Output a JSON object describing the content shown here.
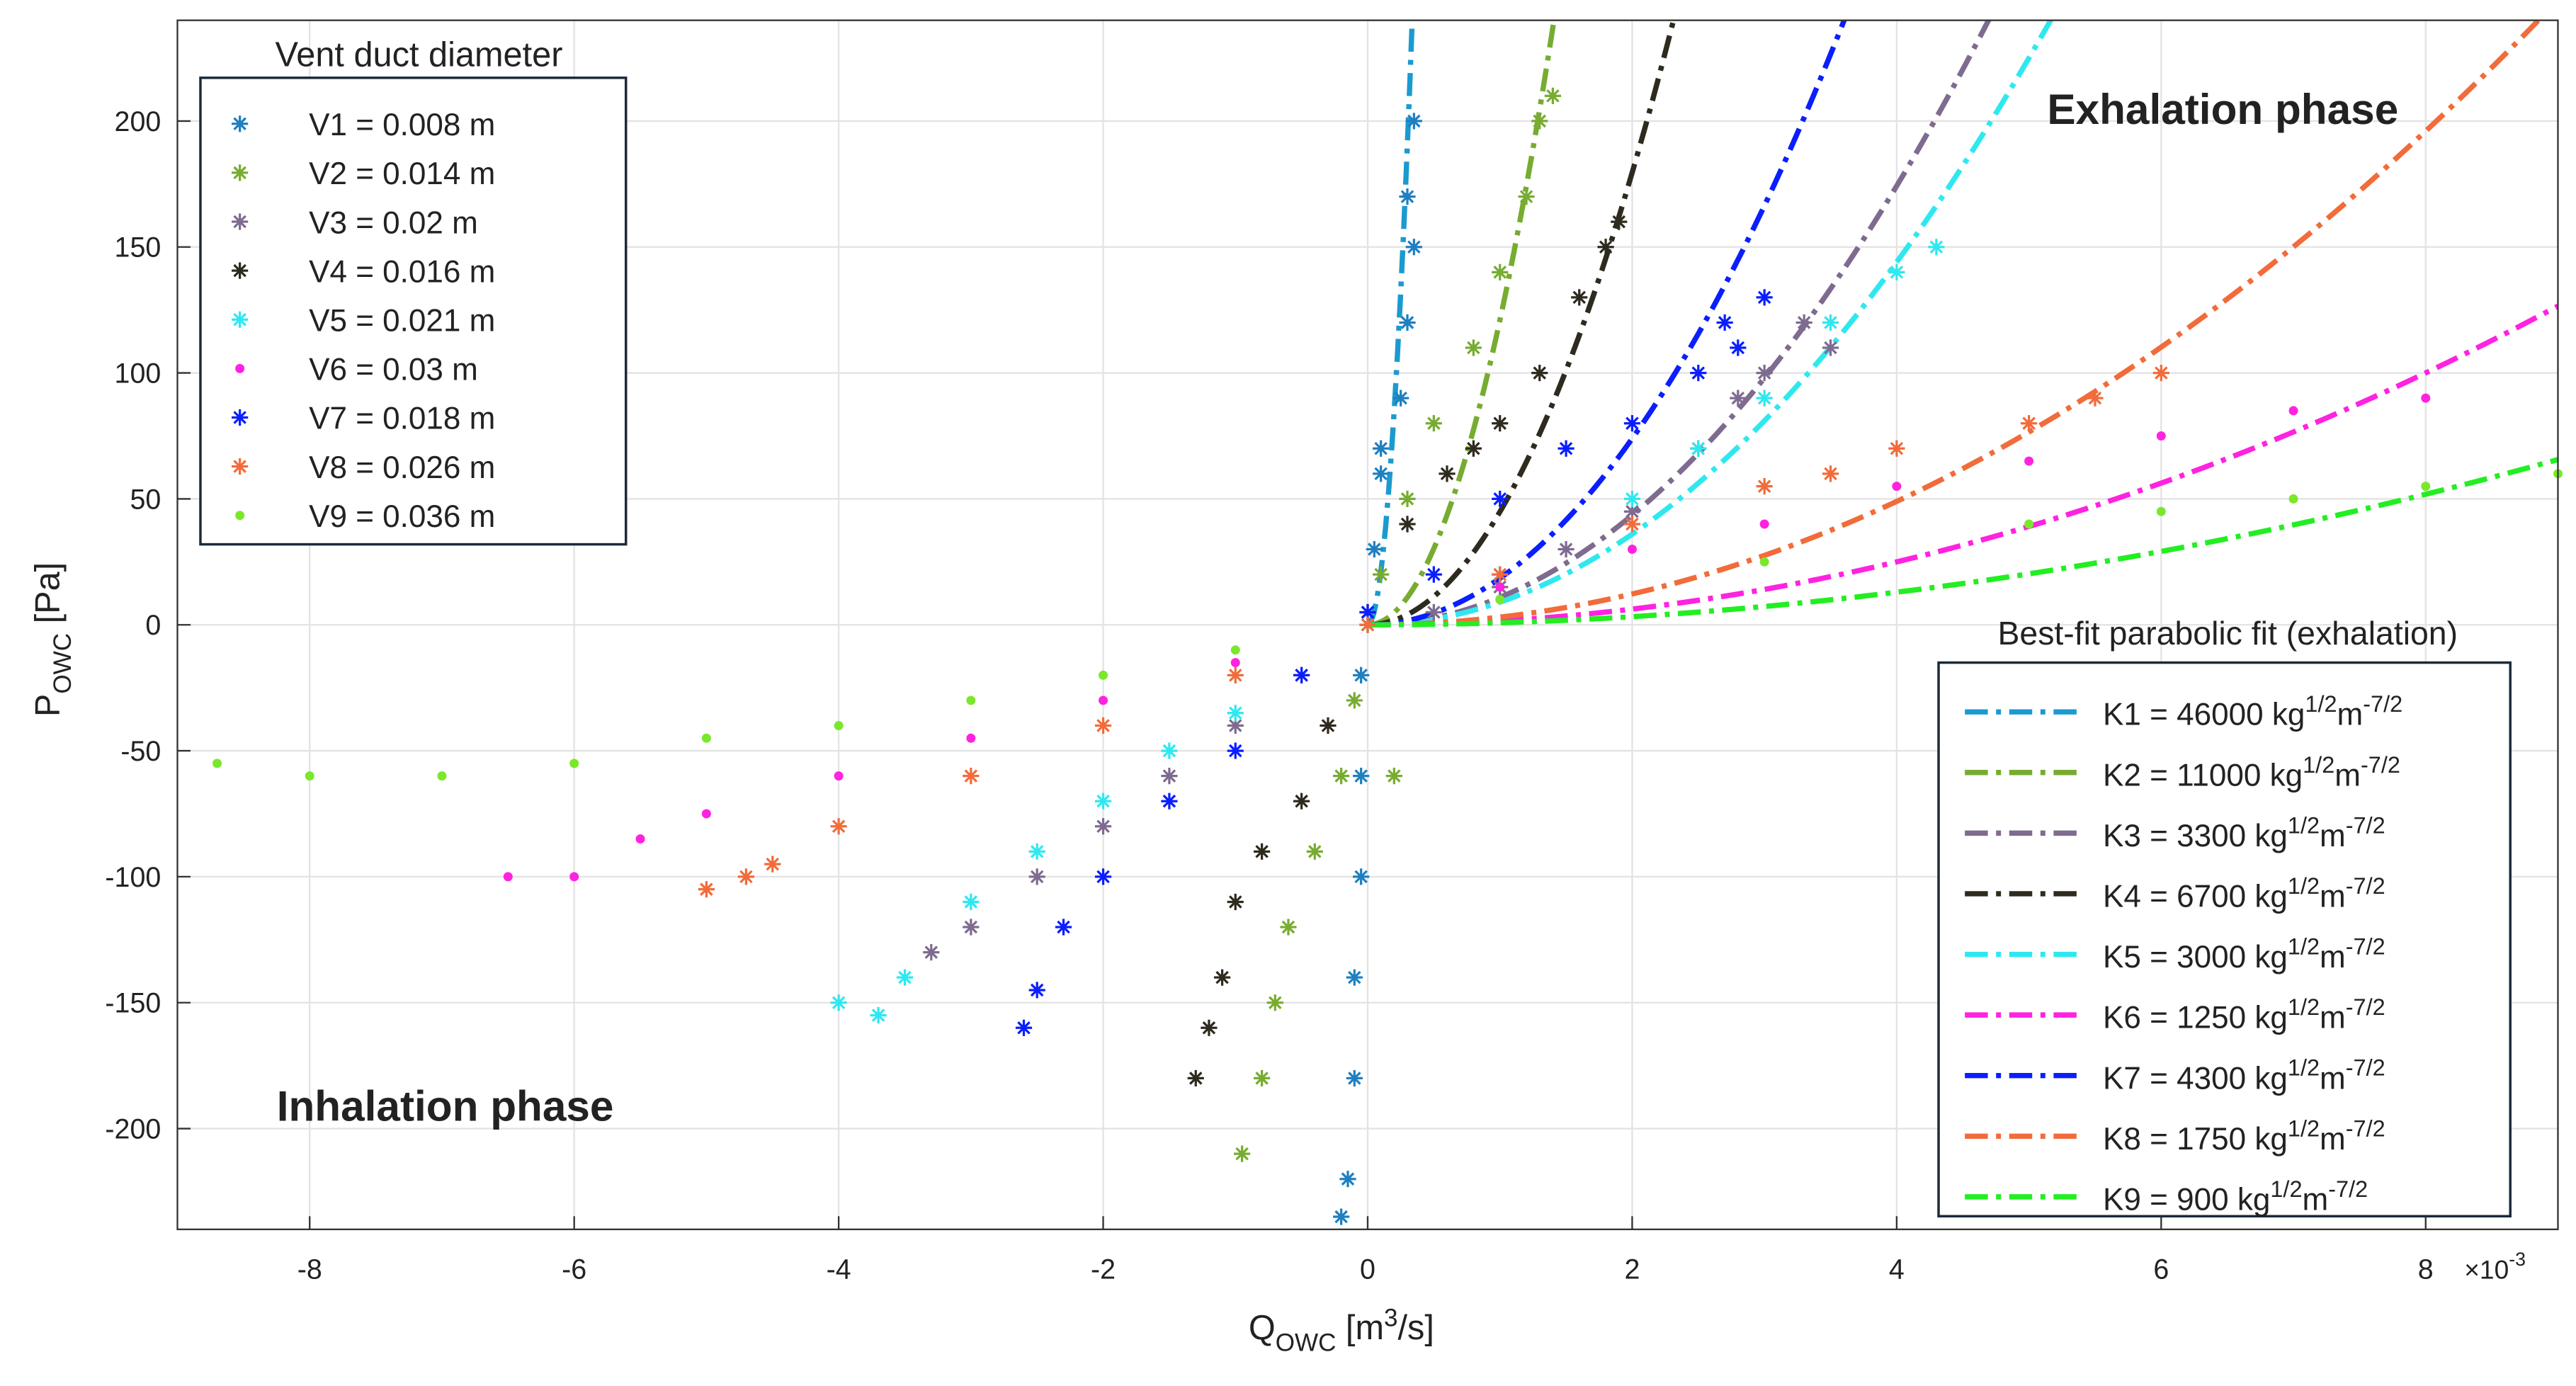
{
  "chart_data": {
    "type": "scatter",
    "xlabel": [
      "Q",
      "OWC",
      " [m",
      "3",
      "/s]"
    ],
    "ylabel": [
      "P",
      "OWC",
      " [Pa]"
    ],
    "x_exponent": [
      "×10",
      "-3"
    ],
    "xlim": [
      -9,
      9
    ],
    "ylim": [
      -240,
      240
    ],
    "xticks": [
      -8,
      -6,
      -4,
      -2,
      0,
      2,
      4,
      6,
      8
    ],
    "yticks": [
      -200,
      -150,
      -100,
      -50,
      0,
      50,
      100,
      150,
      200
    ],
    "grid": true,
    "annotations": [
      "Exhalation phase",
      "Inhalation phase"
    ],
    "legend_title": "Vent duct diameter",
    "legend_position": "upper left",
    "series": [
      {
        "name": "V1 = 0.008 m",
        "color": "#1f7fc0",
        "marker": "asterisk",
        "x": [
          0.35,
          0.3,
          0.3,
          0.25,
          0.1,
          0.05,
          0,
          -0.05,
          -0.05,
          -0.05,
          -0.1,
          -0.1,
          -0.15,
          -0.2,
          0.35,
          0.1
        ],
        "y": [
          200,
          170,
          120,
          90,
          60,
          30,
          0,
          -20,
          -60,
          -100,
          -140,
          -180,
          -220,
          -235,
          150,
          70
        ]
      },
      {
        "name": "V2 = 0.014 m",
        "color": "#77ac30",
        "marker": "asterisk",
        "x": [
          1.3,
          1.2,
          1,
          0.8,
          0.5,
          0.3,
          0.1,
          -0.1,
          -0.2,
          -0.4,
          -0.6,
          -0.7,
          -0.8,
          -0.95,
          1.4,
          0.2
        ],
        "y": [
          200,
          170,
          140,
          110,
          80,
          50,
          20,
          -30,
          -60,
          -90,
          -120,
          -150,
          -180,
          -210,
          210,
          -60
        ]
      },
      {
        "name": "V3 = 0.02 m",
        "color": "#7e6b8f",
        "marker": "asterisk",
        "x": [
          3.3,
          3,
          2.8,
          2.5,
          2,
          1.5,
          1,
          0.5,
          -0.5,
          -1,
          -1.5,
          -2,
          -2.5,
          -3,
          -3.3,
          3.5
        ],
        "y": [
          120,
          100,
          90,
          70,
          45,
          30,
          15,
          5,
          -20,
          -40,
          -60,
          -80,
          -100,
          -120,
          -130,
          110
        ]
      },
      {
        "name": "V4 = 0.016 m",
        "color": "#2e2a1e",
        "marker": "asterisk",
        "x": [
          1.9,
          1.6,
          1.3,
          1,
          0.6,
          0.3,
          0,
          -0.3,
          -0.5,
          -0.8,
          -1,
          -1.1,
          -1.2,
          -1.3,
          1.8,
          0.8
        ],
        "y": [
          160,
          130,
          100,
          80,
          60,
          40,
          5,
          -40,
          -70,
          -90,
          -110,
          -140,
          -160,
          -180,
          150,
          70
        ]
      },
      {
        "name": "V5 = 0.021 m",
        "color": "#2ee8f0",
        "marker": "asterisk",
        "x": [
          4.3,
          4,
          3.5,
          3,
          2.5,
          2,
          1,
          0,
          -1,
          -1.5,
          -2,
          -2.5,
          -3,
          -3.5,
          -3.7,
          -4
        ],
        "y": [
          150,
          140,
          120,
          90,
          70,
          50,
          20,
          0,
          -35,
          -50,
          -70,
          -90,
          -110,
          -140,
          -155,
          -150
        ]
      },
      {
        "name": "V6 = 0.03 m",
        "color": "#ff22e0",
        "marker": "dot",
        "x": [
          8,
          7,
          6,
          5,
          4,
          3,
          2,
          1,
          -1,
          -2,
          -3,
          -4,
          -5,
          -5.5,
          -6,
          -6.5
        ],
        "y": [
          90,
          85,
          75,
          65,
          55,
          40,
          30,
          15,
          -15,
          -30,
          -45,
          -60,
          -75,
          -85,
          -100,
          -100
        ]
      },
      {
        "name": "V7 = 0.018 m",
        "color": "#0a1eff",
        "marker": "asterisk",
        "x": [
          3,
          2.7,
          2.5,
          2,
          1.5,
          1,
          0.5,
          0,
          -0.5,
          -1,
          -1.5,
          -2,
          -2.3,
          -2.5,
          -2.6,
          2.8
        ],
        "y": [
          130,
          120,
          100,
          80,
          70,
          50,
          20,
          5,
          -20,
          -50,
          -70,
          -100,
          -120,
          -145,
          -160,
          110
        ]
      },
      {
        "name": "V8 = 0.026 m",
        "color": "#f26b3a",
        "marker": "asterisk",
        "x": [
          6,
          5.5,
          5,
          4,
          3,
          2,
          1,
          0,
          -1,
          -2,
          -3,
          -4,
          -4.5,
          -5,
          -4.7,
          3.5
        ],
        "y": [
          100,
          90,
          80,
          70,
          55,
          40,
          20,
          0,
          -20,
          -40,
          -60,
          -80,
          -95,
          -105,
          -100,
          60
        ]
      },
      {
        "name": "V9 = 0.036 m",
        "color": "#7ae82a",
        "marker": "dot",
        "x": [
          9,
          8,
          7,
          6,
          5,
          3,
          1,
          -1,
          -2,
          -3,
          -4,
          -5,
          -6,
          -7,
          -8,
          -8.7
        ],
        "y": [
          60,
          55,
          50,
          45,
          40,
          25,
          10,
          -10,
          -20,
          -30,
          -40,
          -45,
          -55,
          -60,
          -60,
          -55
        ]
      }
    ],
    "fit_title": "Best-fit parabolic fit (exhalation)",
    "fit_unit": [
      "1/2",
      "m",
      "-7/2"
    ],
    "fits": [
      {
        "name": "K1 = 46000 kg",
        "k": 46000,
        "color": "#1b9ad0"
      },
      {
        "name": "K2 = 11000 kg",
        "k": 11000,
        "color": "#77ac30"
      },
      {
        "name": "K3 = 3300 kg",
        "k": 3300,
        "color": "#7e6b8f"
      },
      {
        "name": "K4 = 6700 kg",
        "k": 6700,
        "color": "#2e2a1e"
      },
      {
        "name": "K5 = 3000 kg",
        "k": 3000,
        "color": "#2ee8f0"
      },
      {
        "name": "K6 = 1250 kg",
        "k": 1250,
        "color": "#ff22e0"
      },
      {
        "name": "K7 = 4300 kg",
        "k": 4300,
        "color": "#0a1eff"
      },
      {
        "name": "K8 = 1750 kg",
        "k": 1750,
        "color": "#f26b3a"
      },
      {
        "name": "K9 = 900 kg",
        "k": 900,
        "color": "#22ee22"
      }
    ]
  }
}
